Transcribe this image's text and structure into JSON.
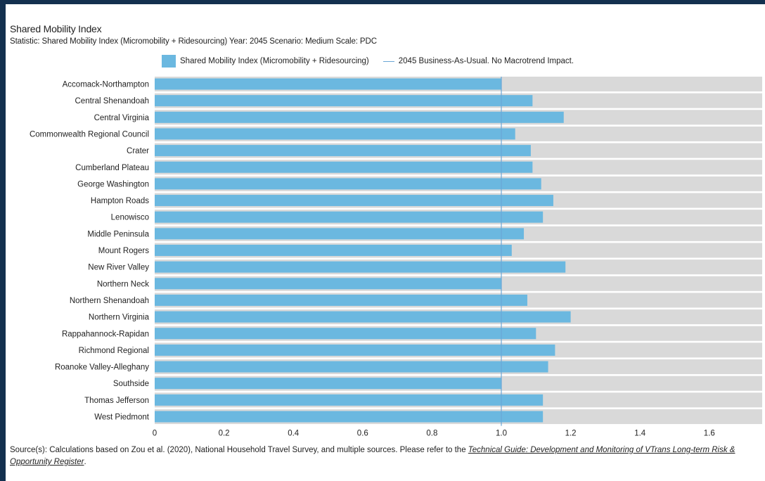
{
  "header": {
    "title": "Shared Mobility Index",
    "subtitle": "Statistic: Shared Mobility Index (Micromobility + Ridesourcing) Year: 2045 Scenario: Medium Scale: PDC"
  },
  "legend": {
    "bar_label": "Shared Mobility Index (Micromobility + Ridesourcing)",
    "line_label": "2045 Business-As-Usual. No Macrotrend Impact."
  },
  "footer": {
    "source_prefix": "Source(s): Calculations based on Zou et al. (2020), National Household Travel Survey, and multiple sources. Please refer to the ",
    "link_text": "Technical Guide: Development and Monitoring of VTrans Long-term Risk & Opportunity Register",
    "suffix": "."
  },
  "colors": {
    "bar": "#6bb8e0",
    "background_band": "#d9d9d9",
    "reference_line": "#6aa6d6",
    "page_background": "#13304f"
  },
  "chart_data": {
    "type": "bar",
    "orientation": "horizontal",
    "categories": [
      "Accomack-Northampton",
      "Central Shenandoah",
      "Central Virginia",
      "Commonwealth Regional Council",
      "Crater",
      "Cumberland Plateau",
      "George Washington",
      "Hampton Roads",
      "Lenowisco",
      "Middle Peninsula",
      "Mount Rogers",
      "New River Valley",
      "Northern Neck",
      "Northern Shenandoah",
      "Northern Virginia",
      "Rappahannock-Rapidan",
      "Richmond Regional",
      "Roanoke Valley-Alleghany",
      "Southside",
      "Thomas Jefferson",
      "West Piedmont"
    ],
    "series": [
      {
        "name": "Shared Mobility Index (Micromobility + Ridesourcing)",
        "values": [
          1.0,
          1.09,
          1.18,
          1.04,
          1.085,
          1.09,
          1.115,
          1.15,
          1.12,
          1.065,
          1.03,
          1.185,
          1.0,
          1.075,
          1.2,
          1.1,
          1.155,
          1.135,
          1.0,
          1.12,
          1.12
        ]
      }
    ],
    "reference_line": {
      "name": "2045 Business-As-Usual. No Macrotrend Impact.",
      "value": 1.0
    },
    "xlim": [
      0,
      1.75
    ],
    "xticks": [
      "0",
      "0.2",
      "0.4",
      "0.6",
      "0.8",
      "1.0",
      "1.2",
      "1.4",
      "1.6"
    ],
    "tick_values": [
      0,
      0.2,
      0.4,
      0.6,
      0.8,
      1.0,
      1.2,
      1.4,
      1.6
    ],
    "grid": false,
    "legend_position": "top"
  }
}
